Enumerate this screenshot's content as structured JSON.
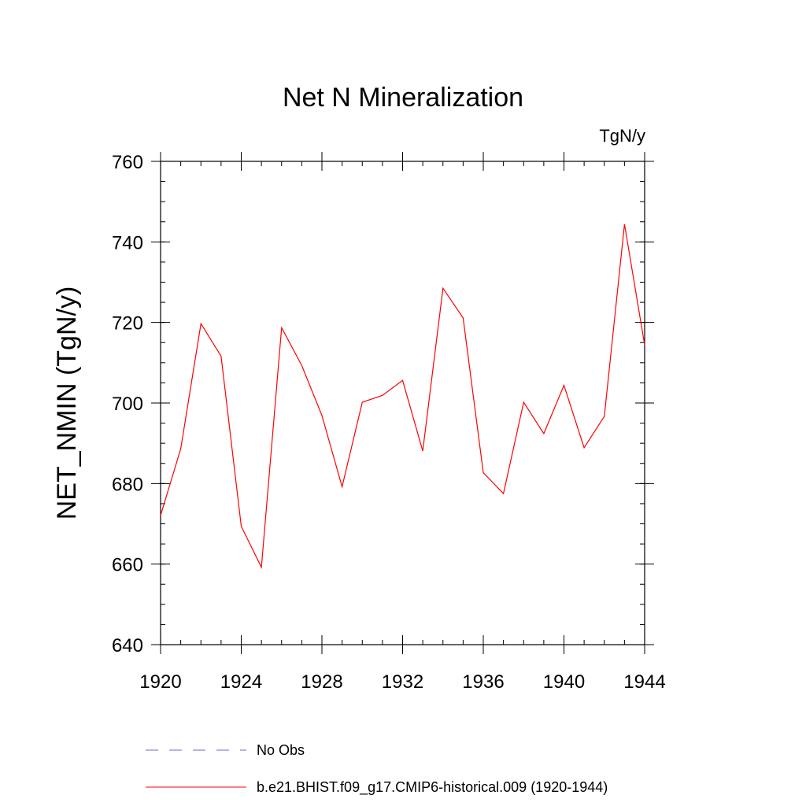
{
  "chart_data": {
    "type": "line",
    "title": "Net N Mineralization",
    "units_label": "TgN/y",
    "ylabel": "NET_NMIN  (TgN/y)",
    "xlabel": "",
    "xlim": [
      1920,
      1944
    ],
    "ylim": [
      640,
      760
    ],
    "x_ticks": [
      1920,
      1924,
      1928,
      1932,
      1936,
      1940,
      1944
    ],
    "y_ticks": [
      640,
      660,
      680,
      700,
      720,
      740,
      760
    ],
    "x_minor_step": 1,
    "y_minor_step": 5,
    "grid": false,
    "legend_position": "bottom",
    "series": [
      {
        "name": "No Obs",
        "color": "#6a6ad8",
        "style": "dashed",
        "x": [],
        "y": []
      },
      {
        "name": "b.e21.BHIST.f09_g17.CMIP6-historical.009 (1920-1944)",
        "color": "#ff0000",
        "style": "solid",
        "x": [
          1920,
          1921,
          1922,
          1923,
          1924,
          1925,
          1926,
          1927,
          1928,
          1929,
          1930,
          1931,
          1932,
          1933,
          1934,
          1935,
          1936,
          1937,
          1938,
          1939,
          1940,
          1941,
          1942,
          1943,
          1944
        ],
        "y": [
          672.1,
          688.6,
          719.7,
          711.6,
          669.4,
          659.2,
          718.7,
          709.3,
          696.9,
          679.2,
          700.2,
          701.9,
          705.6,
          688.1,
          728.5,
          721.1,
          682.7,
          677.5,
          700.2,
          692.4,
          704.4,
          688.9,
          696.7,
          744.4,
          714.4
        ]
      }
    ]
  }
}
